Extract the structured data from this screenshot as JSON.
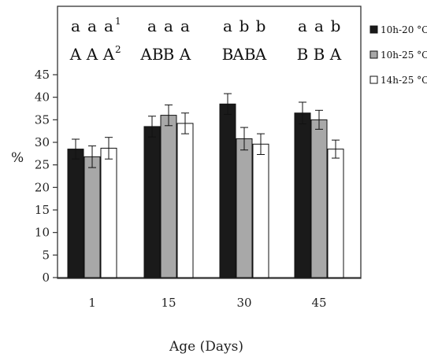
{
  "chart_data": {
    "type": "bar",
    "categories": [
      "1",
      "15",
      "30",
      "45"
    ],
    "xlabel": "Age (Days)",
    "ylabel": "%",
    "ylim": [
      0,
      45
    ],
    "yticks": [
      0,
      5,
      10,
      15,
      20,
      25,
      30,
      35,
      40,
      45
    ],
    "error_bars": true,
    "legend_position": "right",
    "series": [
      {
        "name": "10h-20 °C",
        "color": "#1a1a1a",
        "values": [
          28.5,
          33.5,
          38.5,
          36.5
        ],
        "errors": [
          2.2,
          2.3,
          2.3,
          2.4
        ]
      },
      {
        "name": "10h-25 °C",
        "color": "#a8a8a8",
        "values": [
          26.8,
          36.0,
          30.8,
          35.0
        ],
        "errors": [
          2.4,
          2.3,
          2.5,
          2.1
        ]
      },
      {
        "name": "14h-25 °C",
        "color": "#ffffff",
        "values": [
          28.7,
          34.2,
          29.6,
          28.5
        ],
        "errors": [
          2.4,
          2.3,
          2.3,
          2.0
        ]
      }
    ],
    "annotations": {
      "lowercase": [
        [
          "a",
          "a",
          "a"
        ],
        [
          "a",
          "a",
          "a"
        ],
        [
          "a",
          "b",
          "b"
        ],
        [
          "a",
          "a",
          "b"
        ]
      ],
      "uppercase": [
        [
          "A",
          "A",
          "A"
        ],
        [
          "AB",
          "B",
          "A"
        ],
        [
          "B",
          "AB",
          "A"
        ],
        [
          "B",
          "B",
          "A"
        ]
      ],
      "superscripts": {
        "lowercase_group1_bar3": "1",
        "uppercase_group1_bar3": "2"
      }
    }
  }
}
